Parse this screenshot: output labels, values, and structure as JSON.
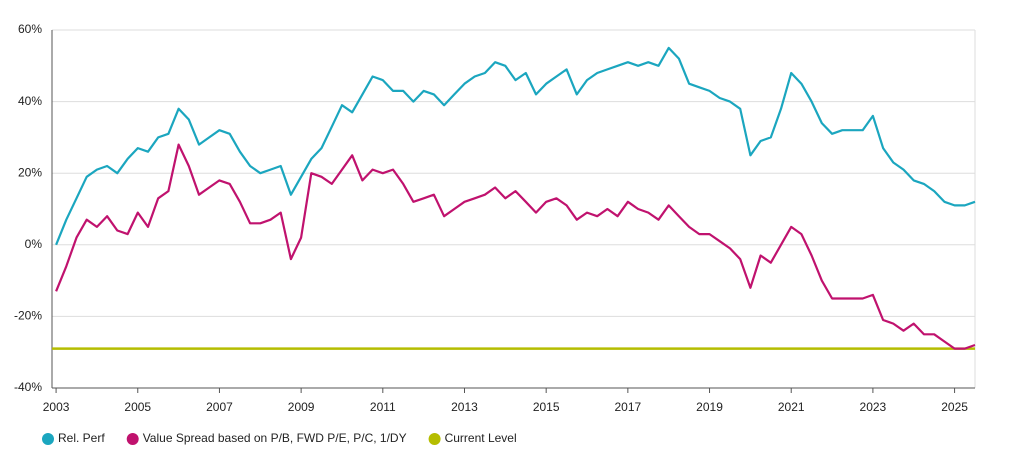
{
  "chart_data": {
    "type": "line",
    "x": [
      2003,
      2003.25,
      2003.5,
      2003.75,
      2004,
      2004.25,
      2004.5,
      2004.75,
      2005,
      2005.25,
      2005.5,
      2005.75,
      2006,
      2006.25,
      2006.5,
      2006.75,
      2007,
      2007.25,
      2007.5,
      2007.75,
      2008,
      2008.25,
      2008.5,
      2008.75,
      2009,
      2009.25,
      2009.5,
      2009.75,
      2010,
      2010.25,
      2010.5,
      2010.75,
      2011,
      2011.25,
      2011.5,
      2011.75,
      2012,
      2012.25,
      2012.5,
      2012.75,
      2013,
      2013.25,
      2013.5,
      2013.75,
      2014,
      2014.25,
      2014.5,
      2014.75,
      2015,
      2015.25,
      2015.5,
      2015.75,
      2016,
      2016.25,
      2016.5,
      2016.75,
      2017,
      2017.25,
      2017.5,
      2017.75,
      2018,
      2018.25,
      2018.5,
      2018.75,
      2019,
      2019.25,
      2019.5,
      2019.75,
      2020,
      2020.25,
      2020.5,
      2020.75,
      2021,
      2021.25,
      2021.5,
      2021.75,
      2022,
      2022.25,
      2022.5,
      2022.75,
      2023,
      2023.25,
      2023.5,
      2023.75,
      2024,
      2024.25,
      2024.5,
      2024.75,
      2025,
      2025.25,
      2025.5
    ],
    "series": [
      {
        "name": "Rel. Perf",
        "color": "#1ba6bf",
        "values": [
          0,
          7,
          13,
          19,
          21,
          22,
          20,
          24,
          27,
          26,
          30,
          31,
          38,
          35,
          28,
          30,
          32,
          31,
          26,
          22,
          20,
          21,
          22,
          14,
          19,
          24,
          27,
          33,
          39,
          37,
          42,
          47,
          46,
          43,
          43,
          40,
          43,
          42,
          39,
          42,
          45,
          47,
          48,
          51,
          50,
          46,
          48,
          42,
          45,
          47,
          49,
          42,
          46,
          48,
          49,
          50,
          51,
          50,
          51,
          50,
          55,
          52,
          45,
          44,
          43,
          41,
          40,
          38,
          25,
          29,
          30,
          38,
          48,
          45,
          40,
          34,
          31,
          32,
          32,
          32,
          36,
          27,
          23,
          21,
          18,
          17,
          15,
          12,
          11,
          11,
          12
        ]
      },
      {
        "name": "Value Spread based on P/B, FWD P/E, P/C, 1/DY",
        "color": "#c0126e",
        "values": [
          -13,
          -6,
          2,
          7,
          5,
          8,
          4,
          3,
          9,
          5,
          13,
          15,
          28,
          22,
          14,
          16,
          18,
          17,
          12,
          6,
          6,
          7,
          9,
          -4,
          2,
          20,
          19,
          17,
          21,
          25,
          18,
          21,
          20,
          21,
          17,
          12,
          13,
          14,
          8,
          10,
          12,
          13,
          14,
          16,
          13,
          15,
          12,
          9,
          12,
          13,
          11,
          7,
          9,
          8,
          10,
          8,
          12,
          10,
          9,
          7,
          11,
          8,
          5,
          3,
          3,
          1,
          -1,
          -4,
          -12,
          -3,
          -5,
          0,
          5,
          3,
          -3,
          -10,
          -15,
          -15,
          -15,
          -15,
          -14,
          -21,
          -22,
          -24,
          -22,
          -25,
          -25,
          -27,
          -29,
          -29,
          -28
        ]
      }
    ],
    "level": {
      "name": "Current Level",
      "color": "#b5bd00",
      "value": -29
    },
    "xlim": [
      2002.9,
      2025.5
    ],
    "xticks": [
      2003,
      2005,
      2007,
      2009,
      2011,
      2013,
      2015,
      2017,
      2019,
      2021,
      2023,
      2025
    ],
    "ylim": [
      -40,
      60
    ],
    "yticks": [
      {
        "value": -40,
        "label": "-40%"
      },
      {
        "value": -20,
        "label": "-20%"
      },
      {
        "value": 0,
        "label": "0%"
      },
      {
        "value": 20,
        "label": "20%"
      },
      {
        "value": 40,
        "label": "40%"
      },
      {
        "value": 60,
        "label": "60%"
      }
    ],
    "grid": true
  }
}
